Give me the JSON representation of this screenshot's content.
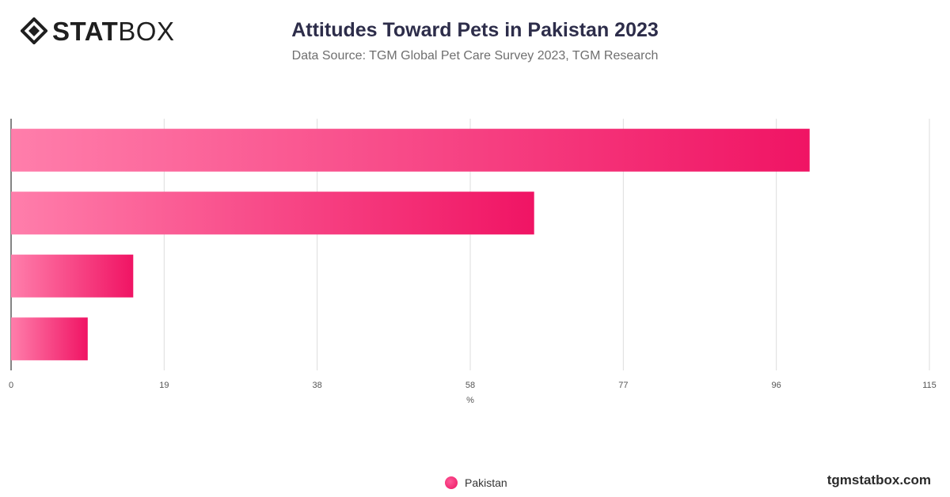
{
  "brand": {
    "logo_bold": "STAT",
    "logo_light": "BOX",
    "website": "tgmstatbox.com"
  },
  "colors": {
    "bar_start": "#ff7eab",
    "bar_end": "#f01464",
    "grid": "#dddddd",
    "axis": "#333333"
  },
  "chart_data": {
    "type": "bar",
    "orientation": "horizontal",
    "title": "Attitudes Toward Pets in Pakistan 2023",
    "subtitle": "Data Source: TGM Global Pet Care Survey 2023, TGM Research",
    "xlabel": "%",
    "xlim": [
      0,
      115
    ],
    "xticks": [
      "0",
      "19",
      "38",
      "58",
      "77",
      "96",
      "115"
    ],
    "xtick_values": [
      0,
      19.17,
      38.33,
      57.5,
      76.67,
      95.83,
      115
    ],
    "categories": [
      "",
      "",
      "",
      ""
    ],
    "series": [
      {
        "name": "Pakistan",
        "values": [
          100,
          65.5,
          15.3,
          9.6
        ]
      }
    ],
    "grid": true,
    "legend": "bottom-center"
  }
}
